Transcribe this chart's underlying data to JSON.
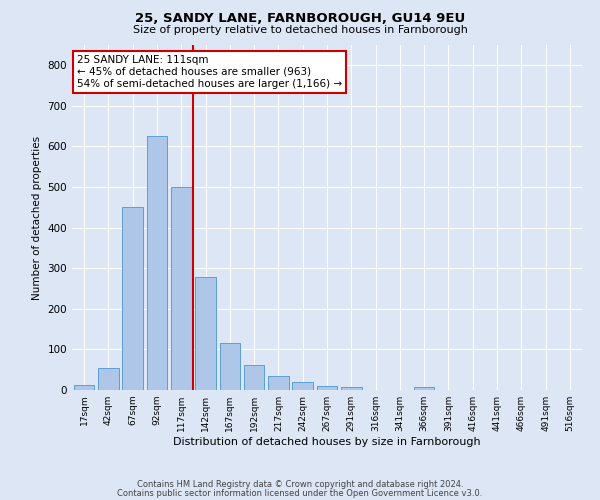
{
  "title1": "25, SANDY LANE, FARNBOROUGH, GU14 9EU",
  "title2": "Size of property relative to detached houses in Farnborough",
  "xlabel": "Distribution of detached houses by size in Farnborough",
  "ylabel": "Number of detached properties",
  "bar_labels": [
    "17sqm",
    "42sqm",
    "67sqm",
    "92sqm",
    "117sqm",
    "142sqm",
    "167sqm",
    "192sqm",
    "217sqm",
    "242sqm",
    "267sqm",
    "291sqm",
    "316sqm",
    "341sqm",
    "366sqm",
    "391sqm",
    "416sqm",
    "441sqm",
    "466sqm",
    "491sqm",
    "516sqm"
  ],
  "bar_values": [
    12,
    55,
    450,
    625,
    500,
    278,
    117,
    62,
    35,
    20,
    10,
    8,
    0,
    0,
    8,
    0,
    0,
    0,
    0,
    0,
    0
  ],
  "bar_color": "#aec6e8",
  "bar_edge_color": "#5a9fd4",
  "vline_x": 4.5,
  "vline_color": "#cc0000",
  "annotation_text": "25 SANDY LANE: 111sqm\n← 45% of detached houses are smaller (963)\n54% of semi-detached houses are larger (1,166) →",
  "annotation_box_color": "#ffffff",
  "annotation_box_edge": "#cc0000",
  "ylim": [
    0,
    850
  ],
  "yticks": [
    0,
    100,
    200,
    300,
    400,
    500,
    600,
    700,
    800
  ],
  "footer1": "Contains HM Land Registry data © Crown copyright and database right 2024.",
  "footer2": "Contains public sector information licensed under the Open Government Licence v3.0.",
  "bg_color": "#dce6f5",
  "plot_bg_color": "#dce6f5"
}
